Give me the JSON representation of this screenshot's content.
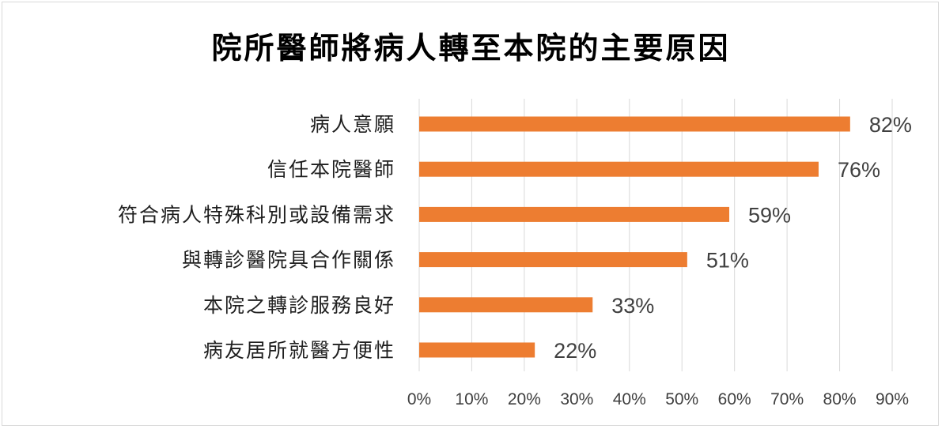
{
  "chart_data": {
    "type": "bar",
    "orientation": "horizontal",
    "title": "院所醫師將病人轉至本院的主要原因",
    "xlabel": "",
    "ylabel": "",
    "categories": [
      "病人意願",
      "信任本院醫師",
      "符合病人特殊科別或設備需求",
      "與轉診醫院具合作關係",
      "本院之轉診服務良好",
      "病友居所就醫方便性"
    ],
    "values": [
      82,
      76,
      59,
      51,
      33,
      22
    ],
    "value_labels": [
      "82%",
      "76%",
      "59%",
      "51%",
      "33%",
      "22%"
    ],
    "xlim": [
      0,
      90
    ],
    "ticks": [
      0,
      10,
      20,
      30,
      40,
      50,
      60,
      70,
      80,
      90
    ],
    "tick_labels": [
      "0%",
      "10%",
      "20%",
      "30%",
      "40%",
      "50%",
      "60%",
      "70%",
      "80%",
      "90%"
    ],
    "grid": true,
    "legend": "none",
    "bar_color": "#ed7d31",
    "grid_color": "#d9d9d9"
  }
}
